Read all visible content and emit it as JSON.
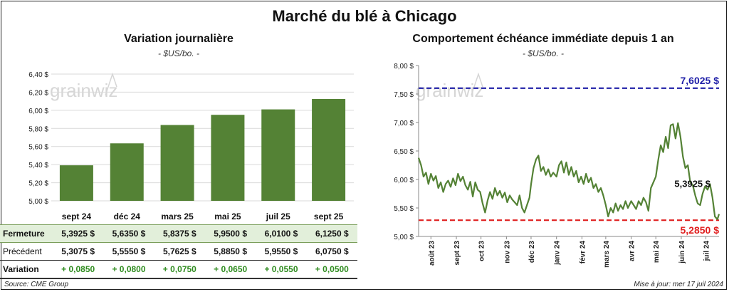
{
  "main_title": "Marché du blé à Chicago",
  "left": {
    "title": "Variation  journalière",
    "unit": "- $US/bo. -"
  },
  "right": {
    "title": "Comportement  échéance immédiate depuis 1 an",
    "unit": "- $US/bo. -"
  },
  "watermark": "grainwiz",
  "table": {
    "row_close_label": "Fermeture",
    "row_prev_label": "Précédent",
    "row_var_label": "Variation",
    "close": [
      "5,3925  $",
      "5,6350  $",
      "5,8375  $",
      "5,9500  $",
      "6,0100  $",
      "6,1250  $"
    ],
    "prev": [
      "5,3075  $",
      "5,5550  $",
      "5,7625  $",
      "5,8850  $",
      "5,9550  $",
      "6,0750  $"
    ],
    "var": [
      "+ 0,0850",
      "+ 0,0800",
      "+ 0,0750",
      "+ 0,0650",
      "+ 0,0550",
      "+ 0,0500"
    ]
  },
  "footer": {
    "source": "Source: CME Group",
    "updated": "Mise à jour: mer 17 juil 2024"
  },
  "colors": {
    "bar": "#548235",
    "line": "#548235",
    "high_line": "#1f1fa8",
    "low_line": "#e02020"
  },
  "chart_data": [
    {
      "type": "bar",
      "title": "Variation  journalière",
      "categories": [
        "sept 24",
        "déc 24",
        "mars 25",
        "mai 25",
        "juil 25",
        "sept 25"
      ],
      "values": [
        5.3925,
        5.635,
        5.8375,
        5.95,
        6.01,
        6.125
      ],
      "ylim": [
        5.0,
        6.4
      ],
      "yticks": [
        "5,00 $",
        "5,20 $",
        "5,40 $",
        "5,60 $",
        "5,80 $",
        "6,00 $",
        "6,20 $",
        "6,40 $"
      ],
      "ytick_values": [
        5.0,
        5.2,
        5.4,
        5.6,
        5.8,
        6.0,
        6.2,
        6.4
      ],
      "grid": true
    },
    {
      "type": "line",
      "title": "Comportement  échéance immédiate depuis 1 an",
      "ylim": [
        5.0,
        8.0
      ],
      "yticks": [
        "5,00 $",
        "5,50 $",
        "6,00 $",
        "6,50 $",
        "7,00 $",
        "7,50 $",
        "8,00 $"
      ],
      "ytick_values": [
        5.0,
        5.5,
        6.0,
        6.5,
        7.0,
        7.5,
        8.0
      ],
      "xticks": [
        "août 23",
        "sept 23",
        "oct 23",
        "nov 23",
        "déc 23",
        "janv 24",
        "févr 24",
        "mars 24",
        "avr 24",
        "mai 24",
        "juin 24",
        "juil 24"
      ],
      "x_start": "2023-07-17",
      "x_end": "2024-07-17",
      "xtick_dates": [
        "2023-08-01",
        "2023-09-01",
        "2023-10-01",
        "2023-11-01",
        "2023-12-01",
        "2024-01-01",
        "2024-02-01",
        "2024-03-01",
        "2024-04-01",
        "2024-05-01",
        "2024-06-01",
        "2024-07-01"
      ],
      "series": [
        {
          "points": [
            [
              "2023-07-17",
              6.38
            ],
            [
              "2023-07-20",
              6.25
            ],
            [
              "2023-07-23",
              6.05
            ],
            [
              "2023-07-26",
              6.12
            ],
            [
              "2023-07-29",
              5.92
            ],
            [
              "2023-08-01",
              6.1
            ],
            [
              "2023-08-04",
              5.98
            ],
            [
              "2023-08-07",
              6.06
            ],
            [
              "2023-08-10",
              5.85
            ],
            [
              "2023-08-13",
              5.95
            ],
            [
              "2023-08-16",
              5.78
            ],
            [
              "2023-08-19",
              5.92
            ],
            [
              "2023-08-22",
              5.98
            ],
            [
              "2023-08-25",
              5.87
            ],
            [
              "2023-08-28",
              6.02
            ],
            [
              "2023-08-31",
              5.9
            ],
            [
              "2023-09-03",
              6.1
            ],
            [
              "2023-09-06",
              5.97
            ],
            [
              "2023-09-09",
              6.05
            ],
            [
              "2023-09-12",
              5.9
            ],
            [
              "2023-09-15",
              5.82
            ],
            [
              "2023-09-18",
              5.96
            ],
            [
              "2023-09-21",
              5.7
            ],
            [
              "2023-09-24",
              5.95
            ],
            [
              "2023-09-27",
              5.82
            ],
            [
              "2023-09-30",
              5.78
            ],
            [
              "2023-10-03",
              5.58
            ],
            [
              "2023-10-06",
              5.42
            ],
            [
              "2023-10-09",
              5.63
            ],
            [
              "2023-10-12",
              5.78
            ],
            [
              "2023-10-15",
              5.66
            ],
            [
              "2023-10-18",
              5.85
            ],
            [
              "2023-10-21",
              5.72
            ],
            [
              "2023-10-24",
              5.8
            ],
            [
              "2023-10-27",
              5.68
            ],
            [
              "2023-10-30",
              5.77
            ],
            [
              "2023-11-02",
              5.6
            ],
            [
              "2023-11-05",
              5.72
            ],
            [
              "2023-11-08",
              5.65
            ],
            [
              "2023-11-11",
              5.6
            ],
            [
              "2023-11-14",
              5.55
            ],
            [
              "2023-11-17",
              5.72
            ],
            [
              "2023-11-20",
              5.5
            ],
            [
              "2023-11-23",
              5.42
            ],
            [
              "2023-11-26",
              5.55
            ],
            [
              "2023-11-29",
              5.68
            ],
            [
              "2023-12-01",
              5.92
            ],
            [
              "2023-12-04",
              6.2
            ],
            [
              "2023-12-07",
              6.35
            ],
            [
              "2023-12-10",
              6.42
            ],
            [
              "2023-12-13",
              6.15
            ],
            [
              "2023-12-16",
              6.22
            ],
            [
              "2023-12-19",
              6.08
            ],
            [
              "2023-12-22",
              6.18
            ],
            [
              "2023-12-25",
              6.05
            ],
            [
              "2023-12-28",
              6.12
            ],
            [
              "2024-01-01",
              6.05
            ],
            [
              "2024-01-04",
              6.25
            ],
            [
              "2024-01-07",
              6.32
            ],
            [
              "2024-01-10",
              6.12
            ],
            [
              "2024-01-13",
              6.3
            ],
            [
              "2024-01-16",
              6.08
            ],
            [
              "2024-01-19",
              6.22
            ],
            [
              "2024-01-22",
              6.05
            ],
            [
              "2024-01-25",
              6.15
            ],
            [
              "2024-01-28",
              5.95
            ],
            [
              "2024-01-31",
              6.05
            ],
            [
              "2024-02-03",
              5.92
            ],
            [
              "2024-02-06",
              6.1
            ],
            [
              "2024-02-09",
              5.95
            ],
            [
              "2024-02-12",
              6.03
            ],
            [
              "2024-02-15",
              5.85
            ],
            [
              "2024-02-18",
              5.92
            ],
            [
              "2024-02-21",
              5.78
            ],
            [
              "2024-02-24",
              5.85
            ],
            [
              "2024-02-27",
              5.72
            ],
            [
              "2024-03-01",
              5.55
            ],
            [
              "2024-03-04",
              5.35
            ],
            [
              "2024-03-07",
              5.5
            ],
            [
              "2024-03-10",
              5.42
            ],
            [
              "2024-03-13",
              5.58
            ],
            [
              "2024-03-16",
              5.45
            ],
            [
              "2024-03-19",
              5.55
            ],
            [
              "2024-03-22",
              5.48
            ],
            [
              "2024-03-25",
              5.62
            ],
            [
              "2024-03-28",
              5.5
            ],
            [
              "2024-04-01",
              5.62
            ],
            [
              "2024-04-04",
              5.55
            ],
            [
              "2024-04-07",
              5.48
            ],
            [
              "2024-04-10",
              5.62
            ],
            [
              "2024-04-13",
              5.55
            ],
            [
              "2024-04-16",
              5.68
            ],
            [
              "2024-04-19",
              5.6
            ],
            [
              "2024-04-22",
              5.45
            ],
            [
              "2024-04-25",
              5.85
            ],
            [
              "2024-04-28",
              5.95
            ],
            [
              "2024-05-01",
              6.05
            ],
            [
              "2024-05-04",
              6.35
            ],
            [
              "2024-05-07",
              6.6
            ],
            [
              "2024-05-10",
              6.48
            ],
            [
              "2024-05-13",
              6.75
            ],
            [
              "2024-05-16",
              6.55
            ],
            [
              "2024-05-19",
              6.95
            ],
            [
              "2024-05-22",
              6.97
            ],
            [
              "2024-05-25",
              6.72
            ],
            [
              "2024-05-28",
              6.99
            ],
            [
              "2024-05-31",
              6.75
            ],
            [
              "2024-06-03",
              6.4
            ],
            [
              "2024-06-06",
              6.2
            ],
            [
              "2024-06-09",
              6.25
            ],
            [
              "2024-06-12",
              5.95
            ],
            [
              "2024-06-15",
              5.9
            ],
            [
              "2024-06-18",
              5.72
            ],
            [
              "2024-06-21",
              5.58
            ],
            [
              "2024-06-24",
              5.55
            ],
            [
              "2024-06-27",
              5.75
            ],
            [
              "2024-06-30",
              5.88
            ],
            [
              "2024-07-03",
              5.82
            ],
            [
              "2024-07-06",
              5.92
            ],
            [
              "2024-07-09",
              5.68
            ],
            [
              "2024-07-12",
              5.35
            ],
            [
              "2024-07-15",
              5.3
            ],
            [
              "2024-07-17",
              5.3925
            ]
          ]
        }
      ],
      "reference_lines": [
        {
          "value": 7.6025,
          "label": "7,6025  $",
          "color": "#1f1fa8"
        },
        {
          "value": 5.285,
          "label": "5,2850  $",
          "color": "#e02020"
        }
      ],
      "last_label": "5,3925 $",
      "grid": false
    }
  ]
}
